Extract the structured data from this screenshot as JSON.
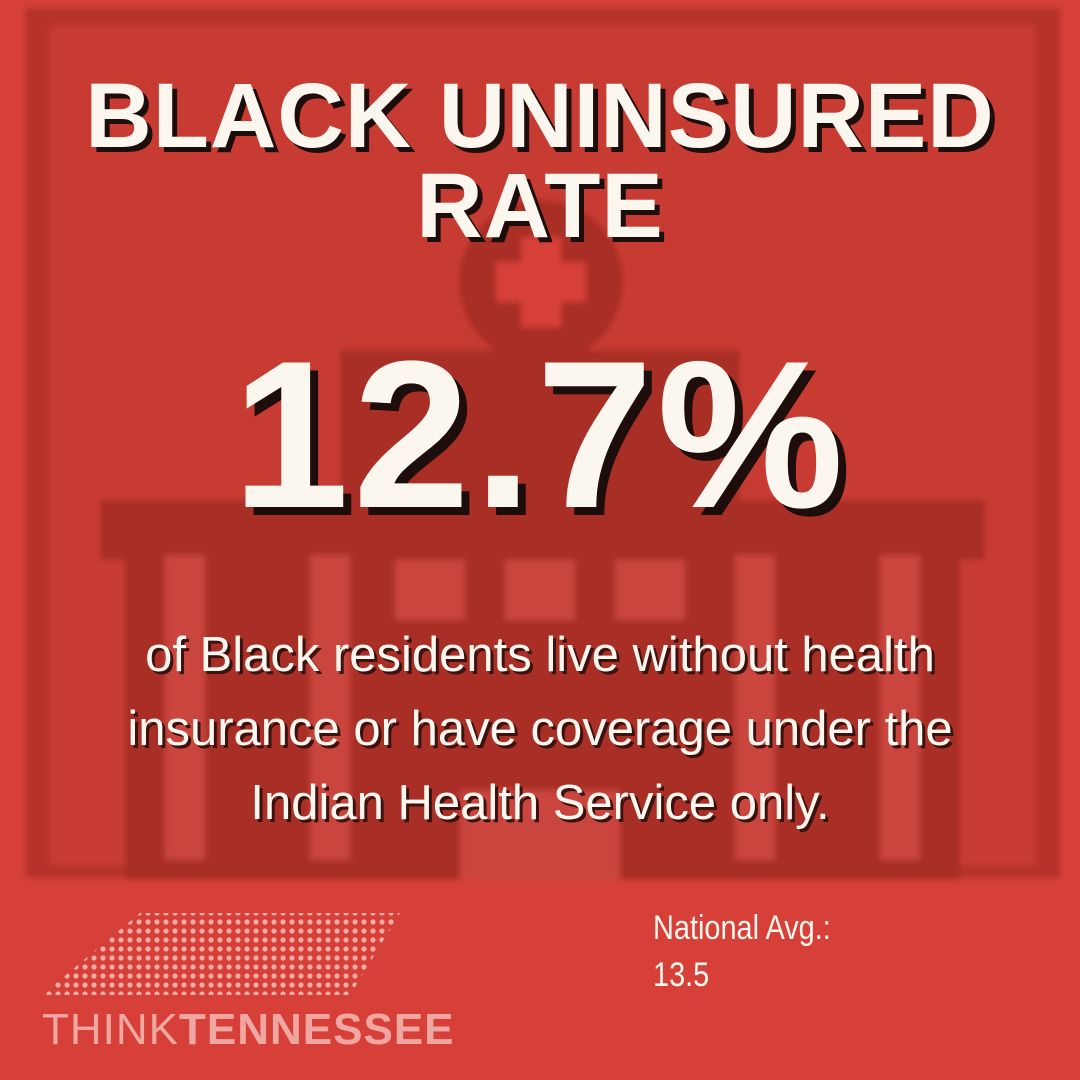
{
  "title": {
    "lines": [
      "BLACK UNINSURED",
      "RATE"
    ]
  },
  "stat": "12.7%",
  "description": {
    "lines": [
      "of Black residents live without health",
      "insurance or have coverage under the",
      "Indian Health Service only."
    ]
  },
  "national_average": {
    "label": "National Avg.:",
    "value": "13.5"
  },
  "logo": {
    "think": "THINK",
    "tennessee": "TENNESSEE"
  }
}
